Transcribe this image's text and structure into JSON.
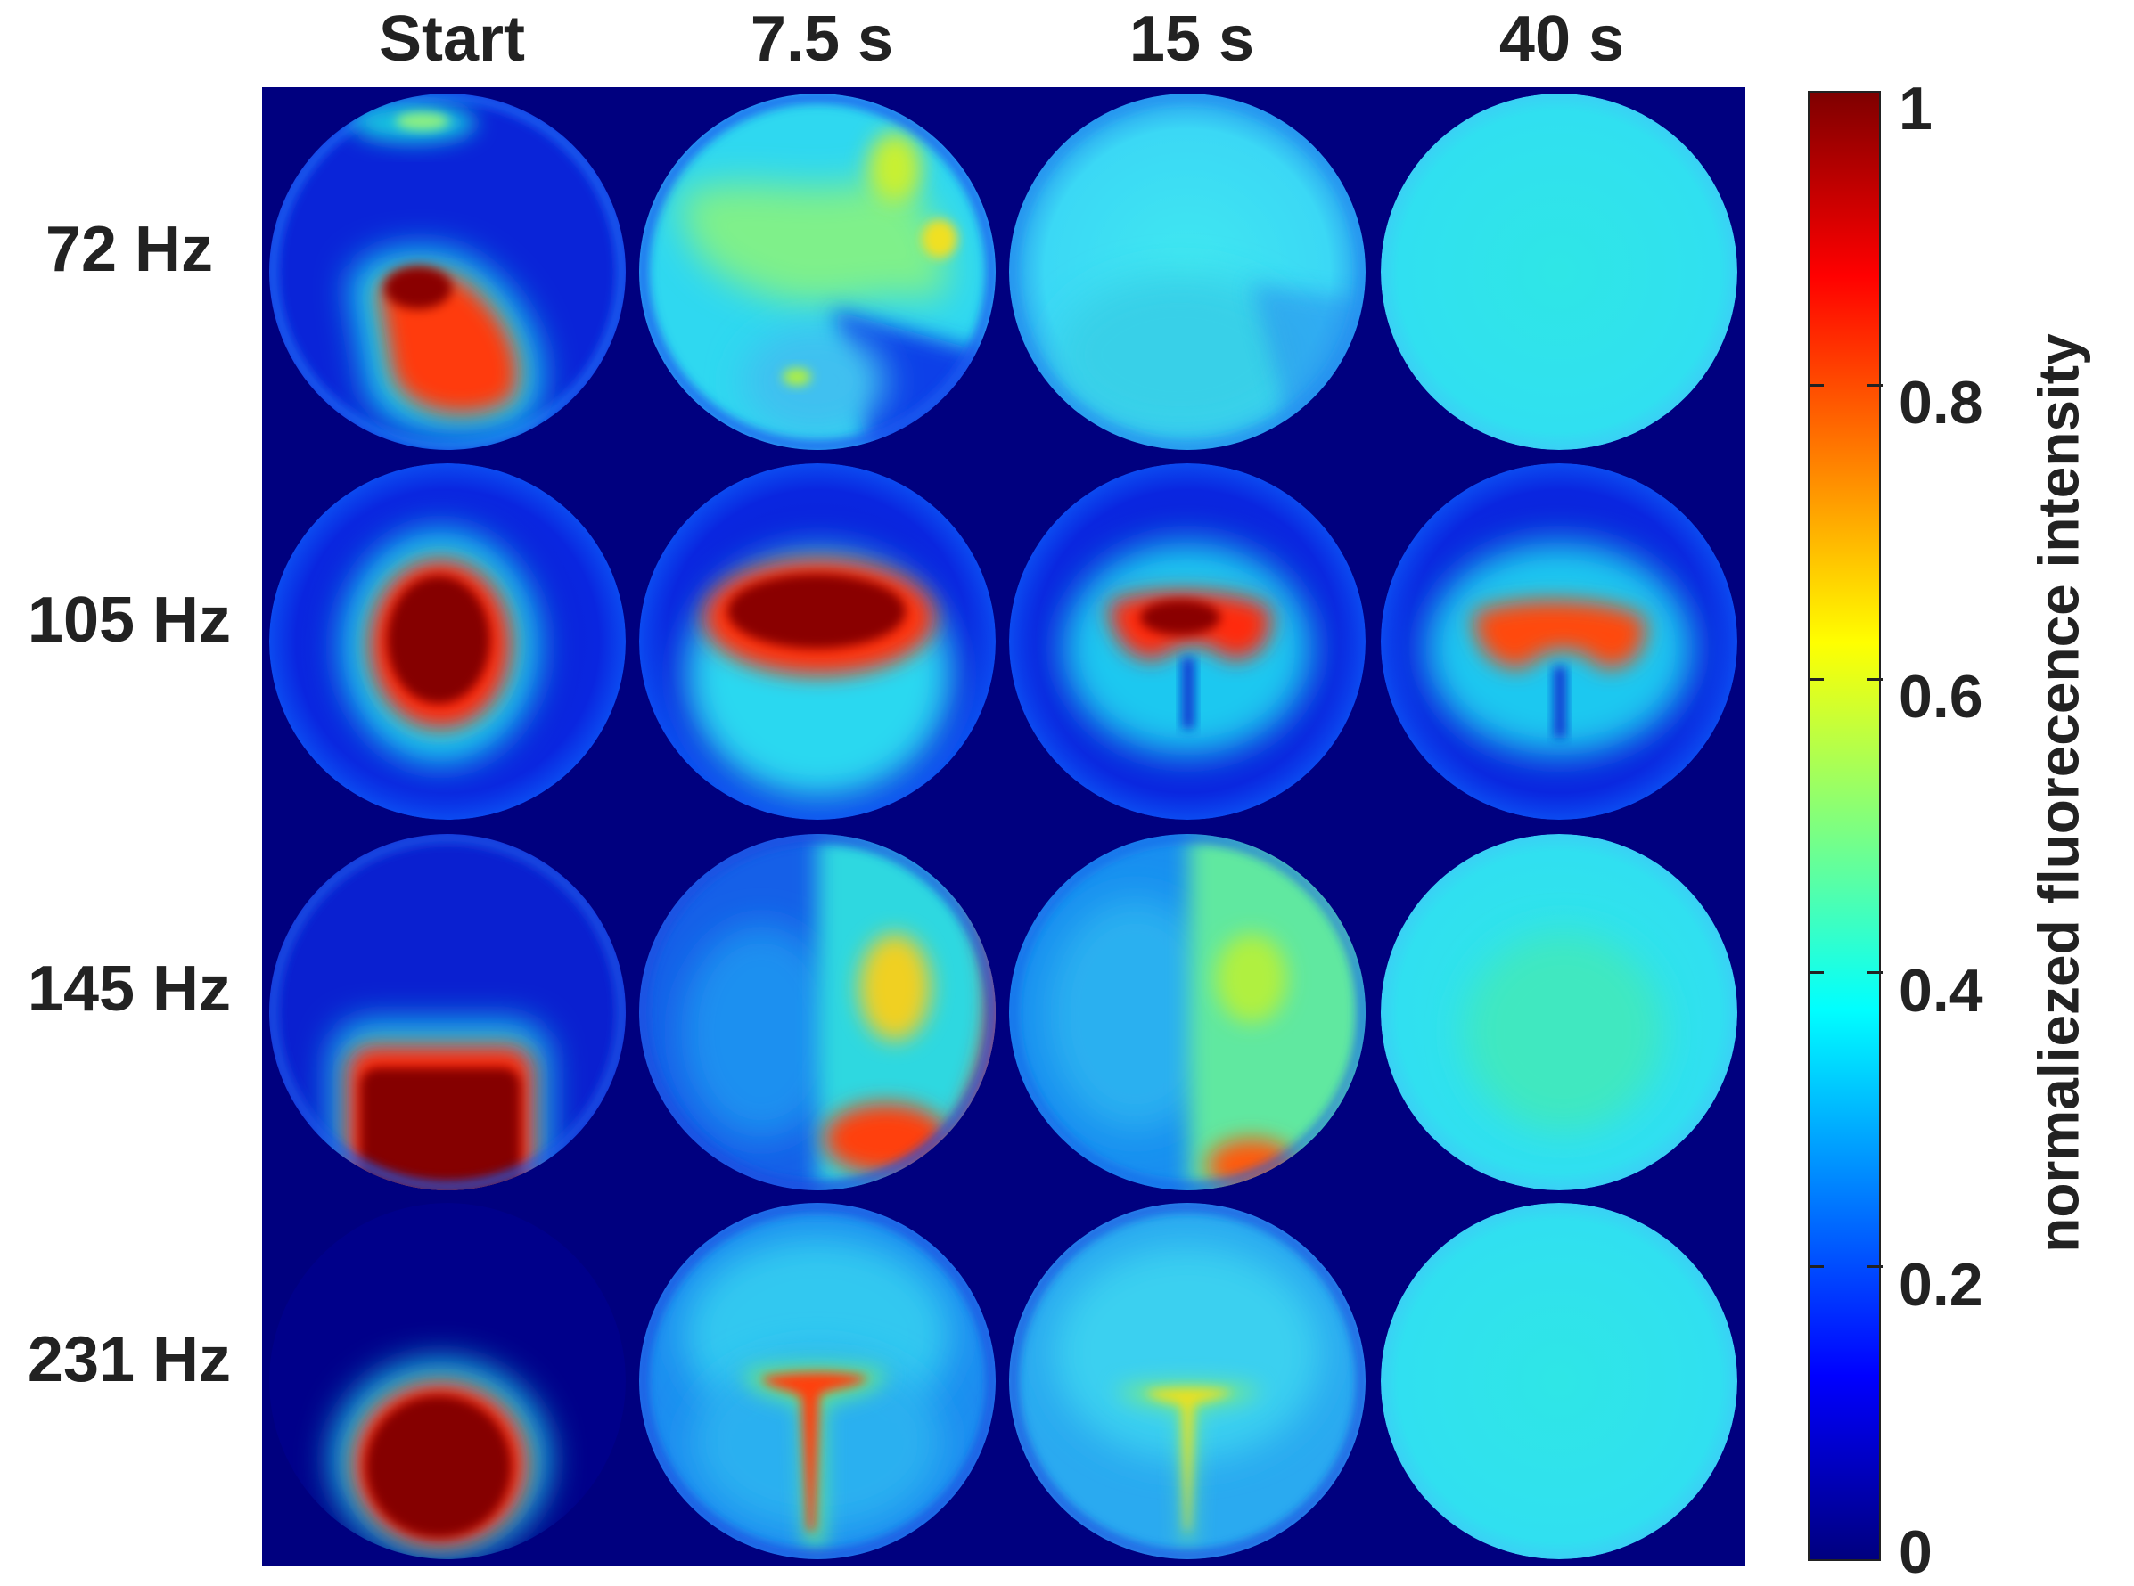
{
  "columns": [
    "Start",
    "7.5 s",
    "15 s",
    "40 s"
  ],
  "rows": [
    "72 Hz",
    "105 Hz",
    "145 Hz",
    "231 Hz"
  ],
  "colorbar": {
    "title": "normaliezed fluorecence intensity",
    "min": 0,
    "max": 1,
    "ticks": [
      "1",
      "0.8",
      "0.6",
      "0.4",
      "0.2",
      "0"
    ],
    "tick_values": [
      1,
      0.8,
      0.6,
      0.4,
      0.2,
      0
    ],
    "colormap": "jet",
    "colors": [
      "#00007f",
      "#0000ff",
      "#007fff",
      "#00ffff",
      "#7fff7f",
      "#ffff00",
      "#ff7f00",
      "#ff0000",
      "#7f0000"
    ]
  },
  "background_color": "#00007f"
}
